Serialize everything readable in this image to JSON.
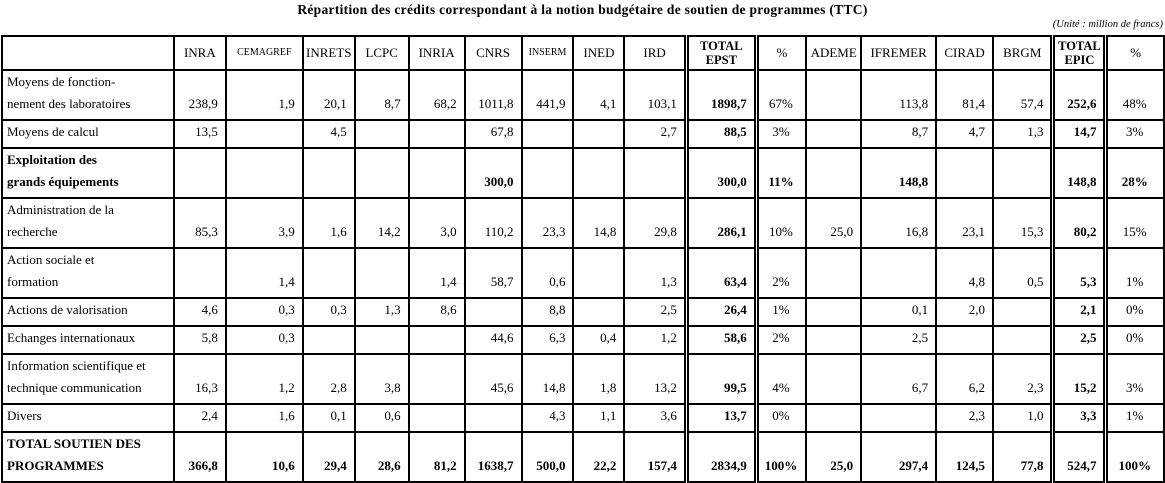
{
  "title": "Répartition des crédits correspondant à la notion budgétaire de soutien de programmes (TTC)",
  "unit_note": "(Unité : million de francs)",
  "table": {
    "columns": [
      {
        "key": "row_label",
        "label": ""
      },
      {
        "key": "inra",
        "label": "INRA"
      },
      {
        "key": "cemagref",
        "label": "CEMAGREF",
        "small": true
      },
      {
        "key": "inrets",
        "label": "INRETS"
      },
      {
        "key": "lcpc",
        "label": "LCPC"
      },
      {
        "key": "inria",
        "label": "INRIA"
      },
      {
        "key": "cnrs",
        "label": "CNRS"
      },
      {
        "key": "inserm",
        "label": "INSERM",
        "small": true
      },
      {
        "key": "ined",
        "label": "INED"
      },
      {
        "key": "ird",
        "label": "IRD"
      },
      {
        "key": "total_epst",
        "label": "TOTAL\nEPST",
        "total": true
      },
      {
        "key": "pct_epst",
        "label": "%",
        "pct": true
      },
      {
        "key": "ademe",
        "label": "ADEME"
      },
      {
        "key": "ifremer",
        "label": "IFREMER"
      },
      {
        "key": "cirad",
        "label": "CIRAD"
      },
      {
        "key": "brgm",
        "label": "BRGM"
      },
      {
        "key": "total_epic",
        "label": "TOTAL\nEPIC",
        "total": true
      },
      {
        "key": "pct_epic",
        "label": "%",
        "pct": true
      }
    ],
    "rows": [
      {
        "label": "Moyens de fonction-\nnement des laboratoires",
        "bold": false,
        "values": [
          "238,9",
          "1,9",
          "20,1",
          "8,7",
          "68,2",
          "1011,8",
          "441,9",
          "4,1",
          "103,1",
          "1898,7",
          "67%",
          "",
          "113,8",
          "81,4",
          "57,4",
          "252,6",
          "48%"
        ]
      },
      {
        "label": "Moyens de calcul",
        "bold": false,
        "values": [
          "13,5",
          "",
          "4,5",
          "",
          "",
          "67,8",
          "",
          "",
          "2,7",
          "88,5",
          "3%",
          "",
          "8,7",
          "4,7",
          "1,3",
          "14,7",
          "3%"
        ]
      },
      {
        "label": "Exploitation des\ngrands équipements",
        "bold": true,
        "values": [
          "",
          "",
          "",
          "",
          "",
          "300,0",
          "",
          "",
          "",
          "300,0",
          "11%",
          "",
          "148,8",
          "",
          "",
          "148,8",
          "28%"
        ]
      },
      {
        "label": "Administration de la\nrecherche",
        "bold": false,
        "values": [
          "85,3",
          "3,9",
          "1,6",
          "14,2",
          "3,0",
          "110,2",
          "23,3",
          "14,8",
          "29,8",
          "286,1",
          "10%",
          "25,0",
          "16,8",
          "23,1",
          "15,3",
          "80,2",
          "15%"
        ]
      },
      {
        "label": "Action sociale et\nformation",
        "bold": false,
        "values": [
          "",
          "1,4",
          "",
          "",
          "1,4",
          "58,7",
          "0,6",
          "",
          "1,3",
          "63,4",
          "2%",
          "",
          "",
          "4,8",
          "0,5",
          "5,3",
          "1%"
        ]
      },
      {
        "label": "Actions de valorisation",
        "bold": false,
        "values": [
          "4,6",
          "0,3",
          "0,3",
          "1,3",
          "8,6",
          "",
          "8,8",
          "",
          "2,5",
          "26,4",
          "1%",
          "",
          "0,1",
          "2,0",
          "",
          "2,1",
          "0%"
        ]
      },
      {
        "label": "Echanges internationaux",
        "bold": false,
        "values": [
          "5,8",
          "0,3",
          "",
          "",
          "",
          "44,6",
          "6,3",
          "0,4",
          "1,2",
          "58,6",
          "2%",
          "",
          "2,5",
          "",
          "",
          "2,5",
          "0%"
        ]
      },
      {
        "label": "Information scientifique et\ntechnique communication",
        "bold": false,
        "values": [
          "16,3",
          "1,2",
          "2,8",
          "3,8",
          "",
          "45,6",
          "14,8",
          "1,8",
          "13,2",
          "99,5",
          "4%",
          "",
          "6,7",
          "6,2",
          "2,3",
          "15,2",
          "3%"
        ]
      },
      {
        "label": "Divers",
        "bold": false,
        "values": [
          "2,4",
          "1,6",
          "0,1",
          "0,6",
          "",
          "",
          "4,3",
          "1,1",
          "3,6",
          "13,7",
          "0%",
          "",
          "",
          "2,3",
          "1,0",
          "3,3",
          "1%"
        ]
      },
      {
        "label": "TOTAL SOUTIEN DES\nPROGRAMMES",
        "bold": true,
        "values": [
          "366,8",
          "10,6",
          "29,4",
          "28,6",
          "81,2",
          "1638,7",
          "500,0",
          "22,2",
          "157,4",
          "2834,9",
          "100%",
          "25,0",
          "297,4",
          "124,5",
          "77,8",
          "524,7",
          "100%"
        ]
      }
    ]
  }
}
